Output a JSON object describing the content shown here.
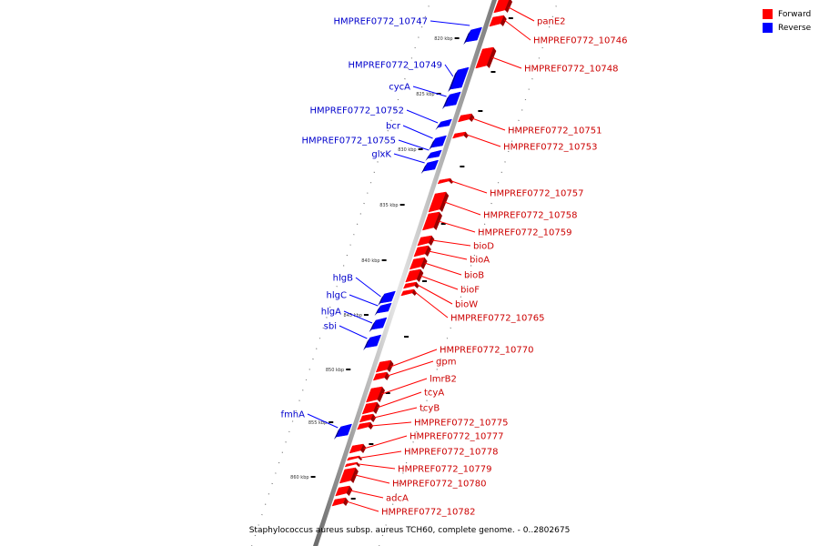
{
  "title": "Staphylococcus aureus subsp. aureus TCH60, complete genome. - 0..2802675",
  "legend": {
    "forward_label": "Forward",
    "reverse_label": "Reverse",
    "forward_color": "#ff0000",
    "reverse_color": "#0000ff"
  },
  "scale_ticks": [
    "820 kbp",
    "825 kbp",
    "830 kbp",
    "835 kbp",
    "840 kbp",
    "845 kbp",
    "850 kbp",
    "855 kbp",
    "860 kbp"
  ],
  "genes_reverse": [
    "HMPREF0772_10747",
    "HMPREF0772_10749",
    "cycA",
    "HMPREF0772_10752",
    "bcr",
    "HMPREF0772_10755",
    "glxK",
    "hlgB",
    "hlgC",
    "hlgA",
    "sbi",
    "fmhA"
  ],
  "genes_forward": [
    "panE2",
    "HMPREF0772_10746",
    "HMPREF0772_10748",
    "HMPREF0772_10751",
    "HMPREF0772_10753",
    "HMPREF0772_10757",
    "HMPREF0772_10758",
    "HMPREF0772_10759",
    "bioD",
    "bioA",
    "bioB",
    "bioF",
    "bioW",
    "HMPREF0772_10765",
    "HMPREF0772_10770",
    "gpm",
    "lmrB2",
    "tcyA",
    "tcyB",
    "HMPREF0772_10775",
    "HMPREF0772_10777",
    "HMPREF0772_10778",
    "HMPREF0772_10779",
    "HMPREF0772_10780",
    "adcA",
    "HMPREF0772_10782"
  ]
}
